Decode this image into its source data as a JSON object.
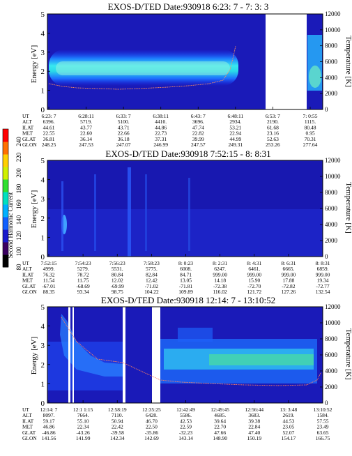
{
  "colorbar": {
    "label": "Second Harmonic Current",
    "ticks": [
      "240",
      "220",
      "200",
      "180",
      "160",
      "140",
      "120",
      "100",
      "80"
    ],
    "colors": [
      "#000000",
      "#3a0060",
      "#1a1acc",
      "#1060ff",
      "#00b0ff",
      "#00e0c0",
      "#30e030",
      "#d0f000",
      "#ffd000",
      "#ff7000",
      "#ff0000"
    ]
  },
  "chart_data": [
    {
      "type": "heatmap",
      "title": "EXOS-D/TED   Date:930918  6:23: 7 - 7: 3: 3",
      "ylabel": "Energy [eV]",
      "ylabel_right": "Temperature [K]",
      "ylim": [
        0,
        5
      ],
      "ylim_right": [
        0,
        12000
      ],
      "yticks": [
        "0",
        "1",
        "2",
        "3",
        "4",
        "5"
      ],
      "yticks_right": [
        "0",
        "2000",
        "4000",
        "6000",
        "8000",
        "10000",
        "12000"
      ],
      "row_labels": [
        "UT",
        "ALT",
        "ILAT",
        "MLT",
        "GLAT",
        "GLON"
      ],
      "columns": [
        [
          "6:23: 7",
          "6396.",
          "44.61",
          "22.55",
          "36.81",
          "248.25"
        ],
        [
          "6:28:11",
          "5719.",
          "43.77",
          "22.60",
          "36.14",
          "247.53"
        ],
        [
          "6:33: 7",
          "5100.",
          "43.71",
          "22.66",
          "36.18",
          "247.07"
        ],
        [
          "6:38:11",
          "4410.",
          "44.86",
          "22.73",
          "37.31",
          "246.99"
        ],
        [
          "6:43: 7",
          "3696.",
          "47.74",
          "22.82",
          "39.99",
          "247.57"
        ],
        [
          "6:48:11",
          "2934.",
          "53.21",
          "22.94",
          "44.99",
          "249.31"
        ],
        [
          "6:53: 7",
          "2190.",
          "61.68",
          "23.16",
          "52.63",
          "253.26"
        ],
        [
          "7: 0:55",
          "1115.",
          "80.48",
          "0.95",
          "70.31",
          "277.64"
        ]
      ]
    },
    {
      "type": "heatmap",
      "title": "EXOS-D/TED   Date:930918  7:52:15 - 8: 8:31",
      "ylabel": "Energy [eV]",
      "ylabel_right": "Temperature [K]",
      "ylim": [
        0,
        5
      ],
      "ylim_right": [
        0,
        12000
      ],
      "yticks": [
        "0",
        "1",
        "2",
        "3",
        "4",
        "5"
      ],
      "yticks_right": [
        "0",
        "2000",
        "4000",
        "6000",
        "8000",
        "10000",
        "12000"
      ],
      "row_labels": [
        "UT",
        "ALT",
        "ILAT",
        "MLT",
        "GLAT",
        "GLON"
      ],
      "columns": [
        [
          "7:52:15",
          "4999.",
          "76.32",
          "11.54",
          "-67.01",
          "88.35"
        ],
        [
          "7:54:23",
          "5279.",
          "78.72",
          "11.75",
          "-68.69",
          "93.34"
        ],
        [
          "7:56:23",
          "5531.",
          "80.84",
          "12.02",
          "-69.99",
          "98.75"
        ],
        [
          "7:58:23",
          "5775.",
          "82.84",
          "12.42",
          "-71.02",
          "104.22"
        ],
        [
          "8: 0:23",
          "6008.",
          "84.71",
          "13.05",
          "-71.81",
          "109.89"
        ],
        [
          "8: 2:31",
          "6247.",
          "999.00",
          "14.18",
          "-72.38",
          "116.02"
        ],
        [
          "8: 4:31",
          "6461.",
          "999.00",
          "15.90",
          "-72.70",
          "121.72"
        ],
        [
          "8: 6:31",
          "6665.",
          "999.00",
          "17.88",
          "-72.82",
          "127.26"
        ],
        [
          "8: 8:31",
          "6859.",
          "999.00",
          "19.34",
          "-72.77",
          "132.54"
        ]
      ]
    },
    {
      "type": "heatmap",
      "title": "EXOS-D/TED   Date:930918  12:14: 7 - 13:10:52",
      "ylabel": "Energy [eV]",
      "ylabel_right": "Temperature [K]",
      "ylim": [
        0,
        5
      ],
      "ylim_right": [
        0,
        12000
      ],
      "yticks": [
        "0",
        "1",
        "2",
        "3",
        "4",
        "5"
      ],
      "yticks_right": [
        "0",
        "2000",
        "4000",
        "6000",
        "8000",
        "10000",
        "12000"
      ],
      "row_labels": [
        "UT",
        "ALT",
        "ILAT",
        "MLT",
        "GLAT",
        "GLON"
      ],
      "columns": [
        [
          "12:14: 7",
          "8097.",
          "59.17",
          "46.86",
          "-46.86",
          "141.56"
        ],
        [
          "12:1 1:15",
          "7664.",
          "55.10",
          "22.34",
          "-43.26",
          "141.99"
        ],
        [
          "12:58:19",
          "7110.",
          "50.94",
          "22.42",
          "-39.58",
          "142.34"
        ],
        [
          "12:35:25",
          "6428.",
          "46.70",
          "22.50",
          "-35.86",
          "142.69"
        ],
        [
          "12:42:49",
          "5586.",
          "42.53",
          "22.59",
          "-32.23",
          "143.14"
        ],
        [
          "12:49:45",
          "4685.",
          "39.64",
          "22.70",
          "47.66",
          "148.90"
        ],
        [
          "12:56:44",
          "3683.",
          "39.38",
          "22.84",
          "47.40",
          "150.19"
        ],
        [
          "13: 3:48",
          "2619.",
          "44.53",
          "23.05",
          "52.07",
          "154.17"
        ],
        [
          "13:10:52",
          "1584.",
          "57.55",
          "23.49",
          "63.65",
          "166.75"
        ]
      ]
    }
  ]
}
